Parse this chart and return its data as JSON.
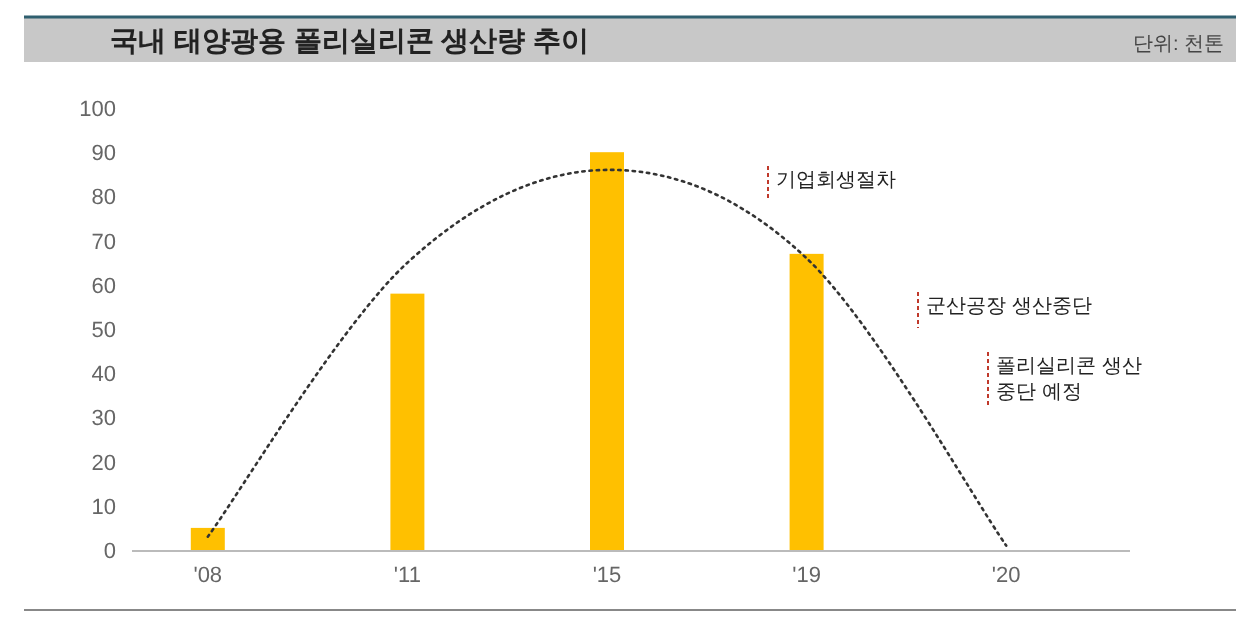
{
  "chart_data": {
    "type": "bar",
    "title": "국내 태양광용 폴리실리콘 생산량 추이",
    "subtitle": "단위: 천톤",
    "categories": [
      "'08",
      "'11",
      "'15",
      "'19",
      "'20"
    ],
    "series": [
      {
        "color": "#ffc000",
        "values": [
          5,
          58,
          90,
          67,
          null
        ]
      },
      {
        "type": "line",
        "color": "#333333",
        "line_style": "dotted",
        "values": [
          3,
          65,
          86,
          66,
          1
        ]
      }
    ],
    "ylim": [
      0,
      100
    ],
    "yticks": [
      0,
      10,
      20,
      30,
      40,
      50,
      60,
      70,
      80,
      90,
      100
    ],
    "annotations": [
      "기업회생절차",
      "군산공장 생산중단",
      "폴리실리콘 생산 중단 예정"
    ]
  }
}
